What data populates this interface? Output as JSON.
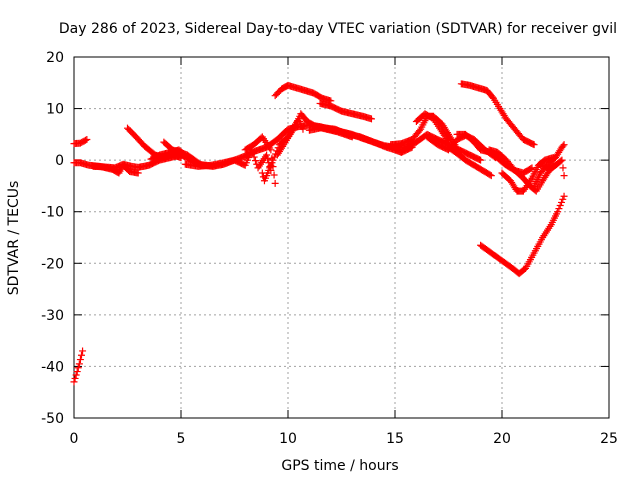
{
  "chart_data": {
    "type": "scatter",
    "title": "Day 286 of 2023, Sidereal Day-to-day VTEC variation (SDTVAR) for receiver gvil",
    "xlabel": "GPS time / hours",
    "ylabel": "SDTVAR / TECUs",
    "xlim": [
      0,
      25
    ],
    "ylim": [
      -50,
      20
    ],
    "xticks": [
      0,
      5,
      10,
      15,
      20,
      25
    ],
    "yticks": [
      -50,
      -40,
      -30,
      -20,
      -10,
      0,
      10,
      20
    ],
    "grid": true,
    "marker": "+",
    "color": "#ff0000",
    "series": [
      {
        "name": "trace-01",
        "points": [
          [
            0.0,
            -43
          ],
          [
            0.15,
            -41
          ],
          [
            0.25,
            -39.5
          ],
          [
            0.4,
            -37
          ]
        ]
      },
      {
        "name": "trace-02",
        "points": [
          [
            0.0,
            3.2
          ],
          [
            0.3,
            3.3
          ],
          [
            0.6,
            4.0
          ]
        ]
      },
      {
        "name": "trace-03",
        "points": [
          [
            0.0,
            -0.5
          ],
          [
            0.3,
            -0.5
          ],
          [
            0.7,
            -1.0
          ],
          [
            1.2,
            -1.2
          ],
          [
            1.8,
            -1.8
          ],
          [
            2.1,
            -2.5
          ],
          [
            2.3,
            -1.0
          ],
          [
            2.6,
            -2.2
          ],
          [
            3.0,
            -2.5
          ]
        ]
      },
      {
        "name": "trace-04",
        "points": [
          [
            0.9,
            -1.2
          ],
          [
            1.4,
            -1.3
          ],
          [
            1.9,
            -1.5
          ],
          [
            2.3,
            -0.8
          ],
          [
            2.7,
            -1.2
          ],
          [
            3.0,
            -1.4
          ],
          [
            3.5,
            -1.0
          ],
          [
            4.0,
            0.0
          ],
          [
            4.5,
            0.5
          ],
          [
            5.0,
            1.0
          ],
          [
            5.5,
            0.0
          ],
          [
            6.0,
            -1.0
          ],
          [
            6.5,
            -1.2
          ],
          [
            7.0,
            -0.8
          ],
          [
            7.5,
            0.0
          ],
          [
            8.0,
            0.8
          ],
          [
            8.5,
            1.8
          ],
          [
            9.0,
            2.5
          ],
          [
            9.5,
            4.0
          ],
          [
            10.0,
            6.0
          ],
          [
            10.5,
            6.5
          ],
          [
            11.0,
            6.8
          ],
          [
            11.5,
            6.5
          ],
          [
            12.0,
            6.0
          ],
          [
            12.5,
            5.5
          ],
          [
            13.0,
            5.0
          ],
          [
            13.5,
            4.2
          ],
          [
            14.0,
            3.5
          ],
          [
            14.5,
            2.8
          ],
          [
            15.0,
            2.5
          ],
          [
            15.5,
            2.4
          ],
          [
            16.0,
            3.5
          ],
          [
            16.5,
            5.0
          ],
          [
            17.0,
            4.0
          ],
          [
            17.5,
            3.0
          ],
          [
            18.0,
            2.0
          ],
          [
            18.5,
            1.0
          ],
          [
            19.0,
            0.0
          ]
        ]
      },
      {
        "name": "trace-05",
        "points": [
          [
            2.5,
            6.2
          ],
          [
            2.9,
            4.5
          ],
          [
            3.3,
            2.7
          ],
          [
            3.8,
            1.0
          ],
          [
            4.2,
            0.5
          ],
          [
            4.6,
            1.0
          ],
          [
            5.0,
            0.5
          ]
        ]
      },
      {
        "name": "trace-06",
        "points": [
          [
            3.6,
            0.2
          ],
          [
            4.0,
            1.0
          ],
          [
            4.5,
            1.5
          ],
          [
            4.9,
            2.0
          ],
          [
            5.3,
            0.5
          ],
          [
            5.8,
            -0.8
          ],
          [
            6.2,
            -1.0
          ]
        ]
      },
      {
        "name": "trace-07",
        "points": [
          [
            4.2,
            3.5
          ],
          [
            4.6,
            2.0
          ],
          [
            5.0,
            1.5
          ],
          [
            5.3,
            1.0
          ],
          [
            5.8,
            -0.5
          ]
        ]
      },
      {
        "name": "trace-08",
        "points": [
          [
            5.2,
            -0.8
          ],
          [
            5.8,
            -1.2
          ],
          [
            6.4,
            -1.0
          ],
          [
            7.0,
            -0.5
          ],
          [
            7.5,
            0.0
          ],
          [
            8.0,
            -1.0
          ],
          [
            8.3,
            2.0
          ],
          [
            8.6,
            -1.5
          ],
          [
            9.0,
            1.0
          ],
          [
            9.2,
            -2.0
          ]
        ]
      },
      {
        "name": "trace-09",
        "points": [
          [
            8.0,
            2.0
          ],
          [
            8.4,
            3.0
          ],
          [
            8.8,
            4.5
          ],
          [
            9.2,
            2.0
          ],
          [
            9.4,
            -4.5
          ]
        ]
      },
      {
        "name": "trace-10",
        "points": [
          [
            8.8,
            -2.5
          ],
          [
            8.9,
            -4.0
          ],
          [
            9.0,
            -3.0
          ],
          [
            9.3,
            0.0
          ],
          [
            9.6,
            3.0
          ],
          [
            10.0,
            4.5
          ],
          [
            10.2,
            6.0
          ],
          [
            10.5,
            8.0
          ],
          [
            10.7,
            6.0
          ]
        ]
      },
      {
        "name": "trace-11",
        "points": [
          [
            9.5,
            1.0
          ],
          [
            9.8,
            3.0
          ],
          [
            10.1,
            5.0
          ],
          [
            10.4,
            7.0
          ],
          [
            10.6,
            9.0
          ],
          [
            10.9,
            7.5
          ],
          [
            11.3,
            6.5
          ],
          [
            11.8,
            6.0
          ],
          [
            12.3,
            5.5
          ],
          [
            13.0,
            4.5
          ]
        ]
      },
      {
        "name": "trace-12",
        "points": [
          [
            9.4,
            12.5
          ],
          [
            9.7,
            13.8
          ],
          [
            10.0,
            14.5
          ],
          [
            10.4,
            14.0
          ],
          [
            10.8,
            13.5
          ],
          [
            11.2,
            13.0
          ],
          [
            11.6,
            12.0
          ],
          [
            12.0,
            11.5
          ]
        ]
      },
      {
        "name": "trace-13",
        "points": [
          [
            11.5,
            11.0
          ],
          [
            12.0,
            10.5
          ],
          [
            12.5,
            9.5
          ],
          [
            13.0,
            9.0
          ],
          [
            13.5,
            8.5
          ],
          [
            13.9,
            8.0
          ]
        ]
      },
      {
        "name": "trace-14",
        "points": [
          [
            11.0,
            5.8
          ],
          [
            11.6,
            6.3
          ],
          [
            12.2,
            6.0
          ],
          [
            12.8,
            5.0
          ],
          [
            13.4,
            4.5
          ],
          [
            14.0,
            3.5
          ],
          [
            14.6,
            2.5
          ],
          [
            15.0,
            2.0
          ],
          [
            15.3,
            1.5
          ],
          [
            15.8,
            2.5
          ]
        ]
      },
      {
        "name": "trace-15",
        "points": [
          [
            14.8,
            3.0
          ],
          [
            15.3,
            3.2
          ],
          [
            15.8,
            4.0
          ],
          [
            16.2,
            6.0
          ],
          [
            16.5,
            8.5
          ],
          [
            16.8,
            8.5
          ],
          [
            17.2,
            7.0
          ],
          [
            17.5,
            5.0
          ],
          [
            17.8,
            3.0
          ],
          [
            18.0,
            1.0
          ]
        ]
      },
      {
        "name": "trace-16",
        "points": [
          [
            16.0,
            7.5
          ],
          [
            16.4,
            9.0
          ],
          [
            16.8,
            8.0
          ],
          [
            17.2,
            5.5
          ],
          [
            17.5,
            3.5
          ]
        ]
      },
      {
        "name": "trace-17",
        "points": [
          [
            16.5,
            4.5
          ],
          [
            17.0,
            3.0
          ],
          [
            17.5,
            2.0
          ],
          [
            17.9,
            4.0
          ],
          [
            18.3,
            4.8
          ],
          [
            18.7,
            4.0
          ],
          [
            19.2,
            2.0
          ],
          [
            19.7,
            0.5
          ]
        ]
      },
      {
        "name": "trace-18",
        "points": [
          [
            17.5,
            2.5
          ],
          [
            18.0,
            1.0
          ],
          [
            18.3,
            0.0
          ],
          [
            18.7,
            -1.0
          ],
          [
            19.1,
            -2.0
          ],
          [
            19.5,
            -3.0
          ]
        ]
      },
      {
        "name": "trace-19",
        "points": [
          [
            17.9,
            5.0
          ],
          [
            18.3,
            5.0
          ],
          [
            18.7,
            3.5
          ],
          [
            19.0,
            2.0
          ],
          [
            19.5,
            1.5
          ],
          [
            19.9,
            0.0
          ],
          [
            20.2,
            -1.0
          ],
          [
            20.6,
            -2.0
          ],
          [
            21.0,
            -2.5
          ],
          [
            21.4,
            -1.5
          ]
        ]
      },
      {
        "name": "trace-20",
        "points": [
          [
            18.1,
            14.8
          ],
          [
            18.5,
            14.5
          ],
          [
            18.9,
            14.0
          ],
          [
            19.3,
            13.5
          ],
          [
            19.6,
            12.0
          ],
          [
            19.9,
            10.0
          ],
          [
            20.2,
            8.0
          ],
          [
            20.6,
            6.0
          ],
          [
            21.0,
            4.0
          ],
          [
            21.5,
            3.0
          ]
        ]
      },
      {
        "name": "trace-21",
        "points": [
          [
            19.4,
            2.0
          ],
          [
            19.8,
            1.5
          ],
          [
            20.2,
            0.0
          ],
          [
            20.6,
            -2.0
          ],
          [
            21.0,
            -3.5
          ],
          [
            21.3,
            -5.0
          ],
          [
            21.6,
            -6.0
          ],
          [
            21.9,
            -4.0
          ],
          [
            22.2,
            -2.0
          ],
          [
            22.5,
            -1.0
          ]
        ]
      },
      {
        "name": "trace-22",
        "points": [
          [
            20.0,
            -2.5
          ],
          [
            20.4,
            -4.0
          ],
          [
            20.7,
            -6.0
          ],
          [
            21.0,
            -6.0
          ],
          [
            21.4,
            -3.5
          ],
          [
            21.7,
            -1.0
          ],
          [
            22.0,
            0.0
          ],
          [
            22.4,
            0.5
          ]
        ]
      },
      {
        "name": "trace-23",
        "points": [
          [
            21.5,
            -5.0
          ],
          [
            21.8,
            -2.5
          ],
          [
            22.2,
            -0.5
          ],
          [
            22.5,
            0.5
          ],
          [
            22.8,
            2.5
          ],
          [
            22.9,
            3.0
          ]
        ]
      },
      {
        "name": "trace-24",
        "points": [
          [
            21.8,
            -1.0
          ],
          [
            22.2,
            -1.5
          ],
          [
            22.5,
            -1.0
          ],
          [
            22.8,
            0.0
          ],
          [
            22.9,
            -3.0
          ]
        ]
      },
      {
        "name": "trace-25",
        "points": [
          [
            19.0,
            -16.5
          ],
          [
            19.5,
            -18.0
          ],
          [
            20.0,
            -19.5
          ],
          [
            20.5,
            -21.0
          ],
          [
            20.8,
            -22.0
          ],
          [
            21.1,
            -21.0
          ],
          [
            21.5,
            -18.0
          ],
          [
            21.9,
            -15.0
          ],
          [
            22.3,
            -12.5
          ],
          [
            22.6,
            -10.0
          ],
          [
            22.9,
            -7.0
          ]
        ]
      }
    ]
  }
}
